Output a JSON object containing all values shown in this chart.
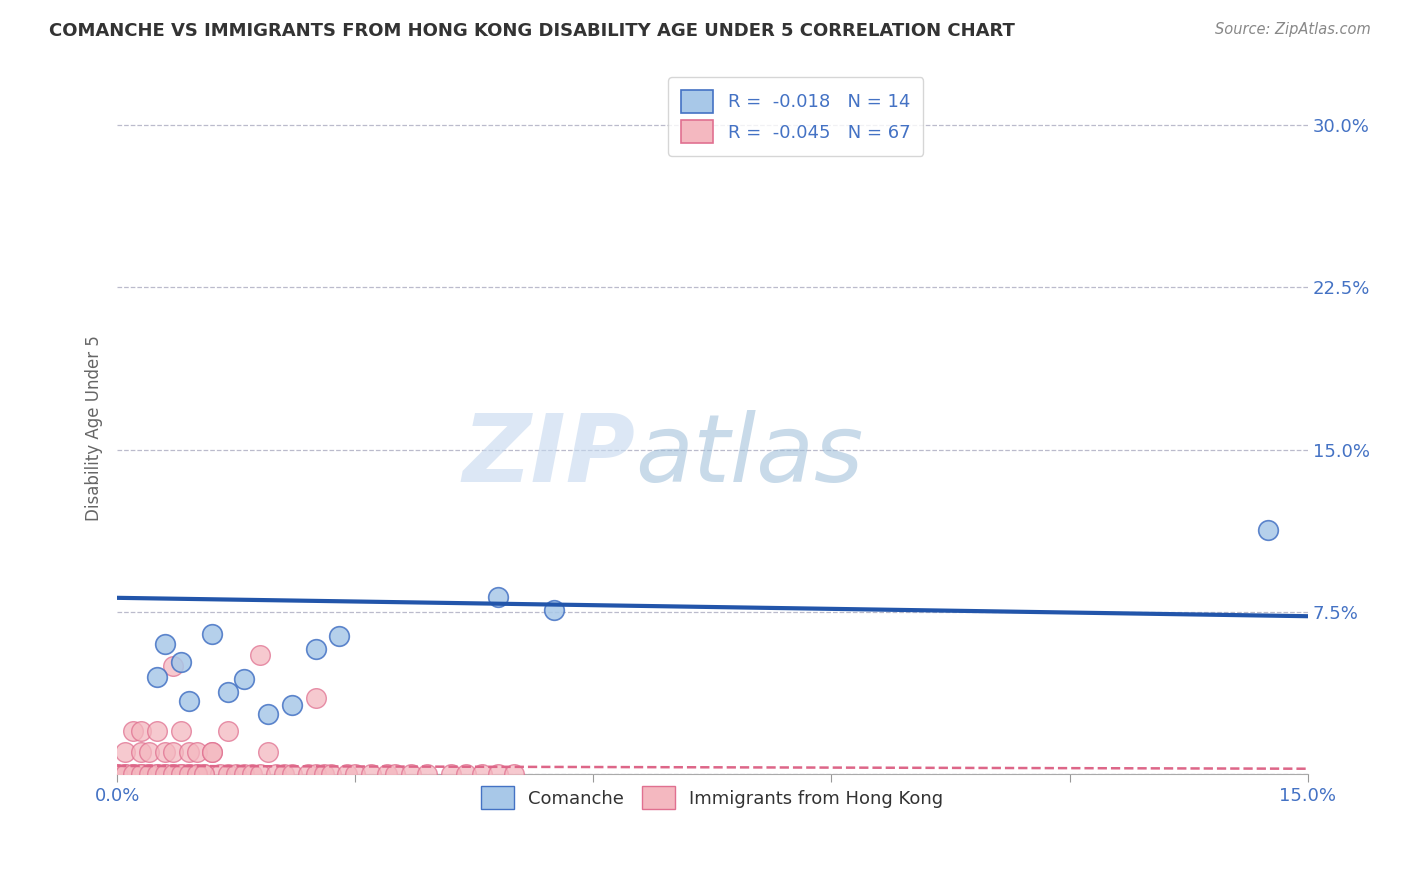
{
  "title": "COMANCHE VS IMMIGRANTS FROM HONG KONG DISABILITY AGE UNDER 5 CORRELATION CHART",
  "source_text": "Source: ZipAtlas.com",
  "ylabel": "Disability Age Under 5",
  "xlim": [
    0.0,
    0.15
  ],
  "ylim": [
    0.0,
    0.32
  ],
  "xticks": [
    0.0,
    0.03,
    0.06,
    0.09,
    0.12,
    0.15
  ],
  "xtick_labels": [
    "0.0%",
    "",
    "",
    "",
    "",
    "15.0%"
  ],
  "ytick_positions": [
    0.0,
    0.075,
    0.15,
    0.225,
    0.3
  ],
  "ytick_labels": [
    "",
    "7.5%",
    "15.0%",
    "22.5%",
    "30.0%"
  ],
  "comanche_x": [
    0.005,
    0.006,
    0.008,
    0.009,
    0.012,
    0.014,
    0.016,
    0.019,
    0.022,
    0.025,
    0.028,
    0.048,
    0.055,
    0.145
  ],
  "comanche_y": [
    0.045,
    0.06,
    0.052,
    0.034,
    0.065,
    0.038,
    0.044,
    0.028,
    0.032,
    0.058,
    0.064,
    0.082,
    0.076,
    0.113
  ],
  "hk_x": [
    0.001,
    0.001,
    0.002,
    0.002,
    0.003,
    0.003,
    0.003,
    0.004,
    0.004,
    0.005,
    0.005,
    0.006,
    0.006,
    0.007,
    0.007,
    0.007,
    0.008,
    0.008,
    0.009,
    0.009,
    0.01,
    0.01,
    0.011,
    0.012,
    0.013,
    0.014,
    0.015,
    0.016,
    0.017,
    0.018,
    0.019,
    0.02,
    0.021,
    0.022,
    0.024,
    0.025,
    0.026,
    0.027,
    0.029,
    0.03,
    0.032,
    0.034,
    0.035,
    0.037,
    0.039,
    0.042,
    0.044,
    0.046,
    0.048,
    0.05,
    0.0,
    0.0,
    0.001,
    0.002,
    0.003,
    0.004,
    0.005,
    0.006,
    0.007,
    0.008,
    0.009,
    0.01,
    0.011,
    0.012,
    0.014,
    0.018,
    0.025
  ],
  "hk_y": [
    0.0,
    0.01,
    0.0,
    0.02,
    0.0,
    0.01,
    0.02,
    0.0,
    0.01,
    0.0,
    0.02,
    0.0,
    0.01,
    0.0,
    0.01,
    0.05,
    0.0,
    0.02,
    0.0,
    0.01,
    0.0,
    0.01,
    0.0,
    0.01,
    0.0,
    0.0,
    0.0,
    0.0,
    0.0,
    0.0,
    0.01,
    0.0,
    0.0,
    0.0,
    0.0,
    0.0,
    0.0,
    0.0,
    0.0,
    0.0,
    0.0,
    0.0,
    0.0,
    0.0,
    0.0,
    0.0,
    0.0,
    0.0,
    0.0,
    0.0,
    0.0,
    0.0,
    0.0,
    0.0,
    0.0,
    0.0,
    0.0,
    0.0,
    0.0,
    0.0,
    0.0,
    0.0,
    0.0,
    0.01,
    0.02,
    0.055,
    0.035
  ],
  "comanche_color": "#a8c8e8",
  "hk_color": "#f4b8c0",
  "comanche_edge_color": "#4472c4",
  "hk_edge_color": "#e07090",
  "trend_blue_color": "#2255aa",
  "trend_pink_color": "#dd6688",
  "trend_blue_y0": 0.0815,
  "trend_blue_y1": 0.073,
  "trend_pink_y0": 0.0038,
  "trend_pink_y1": 0.0025,
  "R_comanche": -0.018,
  "N_comanche": 14,
  "R_hk": -0.045,
  "N_hk": 67,
  "watermark_zip": "ZIP",
  "watermark_atlas": "atlas",
  "background_color": "#ffffff",
  "grid_color": "#bbbbcc",
  "title_color": "#333333",
  "axis_label_color": "#666666",
  "tick_color": "#4472c4",
  "source_color": "#888888",
  "legend_label1": "Comanche",
  "legend_label2": "Immigrants from Hong Kong"
}
